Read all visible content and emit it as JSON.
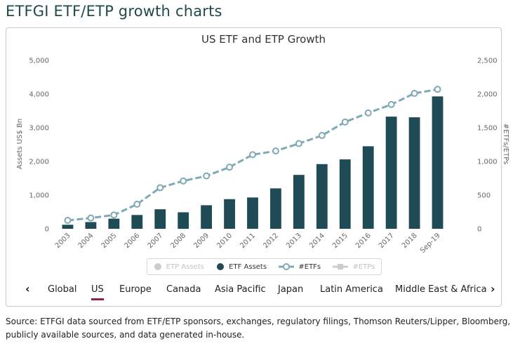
{
  "page_title": "ETFGI ETF/ETP growth charts",
  "chart_data": {
    "type": "bar+line",
    "title": "US ETF and ETP Growth",
    "categories": [
      "2003",
      "2004",
      "2005",
      "2006",
      "2007",
      "2008",
      "2009",
      "2010",
      "2011",
      "2012",
      "2013",
      "2014",
      "2015",
      "2016",
      "2017",
      "2018",
      "Sep-19"
    ],
    "series": [
      {
        "name": "ETF Assets",
        "type": "bar",
        "axis": "left",
        "color": "#1e4b55",
        "values": [
          120,
          200,
          300,
          410,
          580,
          490,
          700,
          880,
          930,
          1200,
          1600,
          1920,
          2060,
          2450,
          3330,
          3310,
          3930
        ]
      },
      {
        "name": "#ETFs",
        "type": "line",
        "axis": "right",
        "color": "#7fa9b4",
        "values": [
          125,
          160,
          205,
          365,
          610,
          710,
          785,
          915,
          1100,
          1155,
          1265,
          1385,
          1585,
          1720,
          1845,
          2010,
          2070
        ]
      }
    ],
    "left_axis": {
      "label": "Assets US$ Bn",
      "min": 0,
      "max": 5000,
      "ticks": [
        "0",
        "1,000",
        "2,000",
        "3,000",
        "4,000",
        "5,000"
      ],
      "tick_values": [
        0,
        1000,
        2000,
        3000,
        4000,
        5000
      ]
    },
    "right_axis": {
      "label": "#ETFs/ETPs",
      "min": 0,
      "max": 2500,
      "ticks": [
        "0",
        "500",
        "1,000",
        "1,500",
        "2,000",
        "2,500"
      ],
      "tick_values": [
        0,
        500,
        1000,
        1500,
        2000,
        2500
      ]
    },
    "grid": false
  },
  "legend": [
    {
      "label": "ETP Assets",
      "state": "off",
      "marker": "dot",
      "color": "#cccccc"
    },
    {
      "label": "ETF Assets",
      "state": "on",
      "marker": "dot",
      "color": "#1e4b55"
    },
    {
      "label": "#ETFs",
      "state": "on",
      "marker": "line-circle",
      "color": "#7fa9b4"
    },
    {
      "label": "#ETPs",
      "state": "off",
      "marker": "line-square",
      "color": "#cccccc"
    }
  ],
  "nav": {
    "prev_icon": "‹",
    "next_icon": "›",
    "tabs": [
      "Global",
      "US",
      "Europe",
      "Canada",
      "Asia Pacific",
      "Japan",
      "Latin America",
      "Middle East & Africa"
    ],
    "active": "US"
  },
  "source": "Source: ETFGI data sourced from ETF/ETP sponsors, exchanges, regulatory filings, Thomson Reuters/Lipper, Bloomberg, publicly available sources, and data generated in-house."
}
